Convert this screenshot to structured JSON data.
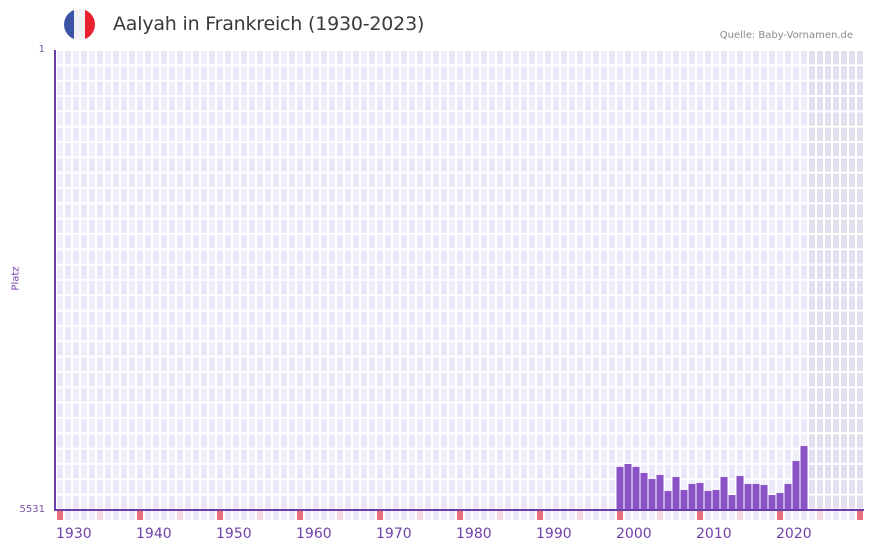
{
  "header": {
    "title": "Aalyah in Frankreich (1930-2023)",
    "source": "Quelle: Baby-Vornamen.de",
    "flag": {
      "name": "france-flag-icon",
      "colors": [
        "#3b53a4",
        "#f1f1f4",
        "#e8212c"
      ]
    }
  },
  "axes": {
    "y_label": "Platz",
    "y_top_tick": "1",
    "y_bottom_tick": "5531",
    "x_ticks": [
      "1930",
      "1940",
      "1950",
      "1960",
      "1970",
      "1980",
      "1990",
      "2000",
      "2010",
      "2020"
    ]
  },
  "colors": {
    "bar": "#8a52c6",
    "axis": "#6c3fa8",
    "grid_bg_a": "#f1eefb",
    "grid_bg_b": "#ece7f8",
    "future_bg": "#e3dfee",
    "decade_marker": "#e5707a",
    "half_decade_marker": "#f5d8e0"
  },
  "chart_data": {
    "type": "bar",
    "title": "Aalyah in Frankreich (1930-2023)",
    "subtitle": "Quelle: Baby-Vornamen.de",
    "xlabel": "",
    "ylabel": "Platz",
    "ylim": [
      5531,
      1
    ],
    "y_inverted": true,
    "x_range": [
      1930,
      2030
    ],
    "grid": true,
    "legend": null,
    "categories": [
      2000,
      2001,
      2002,
      2003,
      2004,
      2005,
      2006,
      2007,
      2008,
      2009,
      2010,
      2011,
      2012,
      2013,
      2014,
      2015,
      2016,
      2017,
      2018,
      2019,
      2020,
      2021,
      2022,
      2023
    ],
    "values": [
      5014,
      4978,
      5014,
      5086,
      5158,
      5110,
      5303,
      5134,
      5291,
      5219,
      5207,
      5303,
      5291,
      5134,
      5351,
      5122,
      5219,
      5219,
      5231,
      5351,
      5327,
      5219,
      4942,
      4762
    ],
    "series": [
      {
        "name": "Platz (Rang)",
        "values": [
          5014,
          4978,
          5014,
          5086,
          5158,
          5110,
          5303,
          5134,
          5291,
          5219,
          5207,
          5303,
          5291,
          5134,
          5351,
          5122,
          5219,
          5219,
          5231,
          5351,
          5327,
          5219,
          4942,
          4762
        ]
      }
    ],
    "annotations": [
      "shaded region 2024-2030 (future years)"
    ]
  }
}
